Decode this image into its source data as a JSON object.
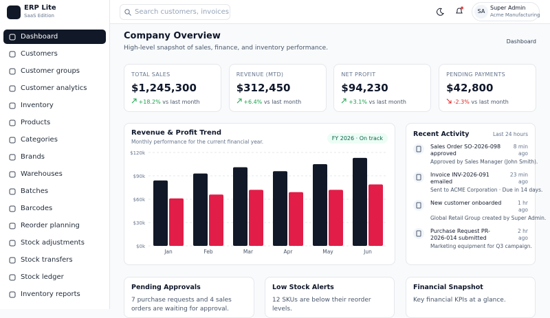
{
  "brand": {
    "name": "ERP Lite",
    "edition": "SaaS Edition"
  },
  "search_placeholder": "Search customers, invoices, or",
  "user": {
    "initials": "SA",
    "name": "Super Admin",
    "company": "Acme Manufacturing"
  },
  "nav": [
    "Dashboard",
    "Customers",
    "Customer groups",
    "Customer analytics",
    "Inventory",
    "Products",
    "Categories",
    "Brands",
    "Warehouses",
    "Batches",
    "Barcodes",
    "Reorder planning",
    "Stock adjustments",
    "Stock transfers",
    "Stock ledger",
    "Inventory reports"
  ],
  "page": {
    "title": "Company Overview",
    "subtitle": "High-level snapshot of sales, finance, and inventory performance.",
    "breadcrumb": "Dashboard"
  },
  "kpis": [
    {
      "label": "TOTAL SALES",
      "value": "$1,245,300",
      "change": "+18.2%",
      "note": "vs last month"
    },
    {
      "label": "REVENUE (MTD)",
      "value": "$312,450",
      "change": "+6.4%",
      "note": "vs last month"
    },
    {
      "label": "NET PROFIT",
      "value": "$94,230",
      "change": "+3.1%",
      "note": "vs last month"
    },
    {
      "label": "PENDING PAYMENTS",
      "value": "$42,800",
      "change": "-2.3%",
      "note": "vs last month"
    }
  ],
  "chart_badge": "FY 2026 · On track",
  "chart_data": {
    "type": "bar",
    "title": "Revenue & Profit Trend",
    "subtitle": "Monthly performance for the current financial year.",
    "categories": [
      "Jan",
      "Feb",
      "Mar",
      "Apr",
      "May",
      "Jun"
    ],
    "series": [
      {
        "color": "#111827",
        "values": [
          84,
          93,
          101,
          96,
          105,
          113
        ]
      },
      {
        "color": "#e11d48",
        "values": [
          61,
          66,
          72,
          69,
          72,
          79
        ]
      }
    ],
    "ylim": [
      0,
      120
    ],
    "yticks": [
      {
        "value": 0,
        "label": "$0k"
      },
      {
        "value": 30,
        "label": "$30k"
      },
      {
        "value": 60,
        "label": "$60k"
      },
      {
        "value": 90,
        "label": "$90k"
      },
      {
        "value": 120,
        "label": "$120k"
      }
    ],
    "grid": true
  },
  "activity": {
    "title": "Recent Activity",
    "window": "Last 24 hours",
    "items": [
      {
        "title": "Sales Order SO-2026-098 approved",
        "time": "8 min ago",
        "detail": "Approved by Sales Manager (John Smith)."
      },
      {
        "title": "Invoice INV-2026-091 emailed",
        "time": "23 min ago",
        "detail": "Sent to ACME Corporation · Due in 14 days."
      },
      {
        "title": "New customer onboarded",
        "time": "1 hr ago",
        "detail": "Global Retail Group created by Super Admin."
      },
      {
        "title": "Purchase Request PR-2026-014 submitted",
        "time": "2 hr ago",
        "detail": "Marketing equipment for Q3 campaign."
      }
    ]
  },
  "cards": [
    {
      "title": "Pending Approvals",
      "text": "7 purchase requests and 4 sales orders are waiting for approval."
    },
    {
      "title": "Low Stock Alerts",
      "text": "12 SKUs are below their reorder levels."
    },
    {
      "title": "Financial Snapshot",
      "text": "Key financial KPIs at a glance."
    }
  ]
}
